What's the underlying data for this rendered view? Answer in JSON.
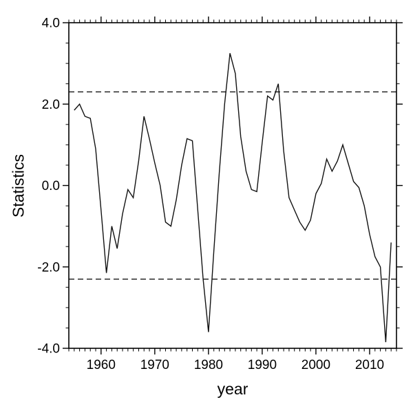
{
  "chart_data": {
    "type": "line",
    "title": "",
    "xlabel": "year",
    "ylabel": "Statistics",
    "xlim": [
      1954,
      2015
    ],
    "ylim": [
      -4.0,
      4.0
    ],
    "grid": false,
    "legend": "none",
    "x_major_ticks": [
      1960,
      1970,
      1980,
      1990,
      2000,
      2010
    ],
    "x_minor_step": 1,
    "y_major_ticks": [
      -4.0,
      -2.0,
      0.0,
      2.0,
      4.0
    ],
    "y_tick_labels": [
      "-4.0",
      "-2.0",
      "0.0",
      "2.0",
      "4.0"
    ],
    "y_minor_step": 0.5,
    "reference_lines": [
      2.3,
      -2.3
    ],
    "line_color": "#111111",
    "frame_color": "#000000",
    "series": [
      {
        "name": "statistics",
        "x": [
          1955,
          1956,
          1957,
          1958,
          1959,
          1960,
          1961,
          1962,
          1963,
          1964,
          1965,
          1966,
          1967,
          1968,
          1969,
          1970,
          1971,
          1972,
          1973,
          1974,
          1975,
          1976,
          1977,
          1978,
          1979,
          1980,
          1981,
          1982,
          1983,
          1984,
          1985,
          1986,
          1987,
          1988,
          1989,
          1990,
          1991,
          1992,
          1993,
          1994,
          1995,
          1996,
          1997,
          1998,
          1999,
          2000,
          2001,
          2002,
          2003,
          2004,
          2005,
          2006,
          2007,
          2008,
          2009,
          2010,
          2011,
          2012,
          2013,
          2014
        ],
        "y": [
          1.85,
          2.0,
          1.7,
          1.65,
          0.9,
          -0.6,
          -2.15,
          -1.0,
          -1.55,
          -0.7,
          -0.1,
          -0.3,
          0.6,
          1.7,
          1.15,
          0.55,
          0.0,
          -0.9,
          -1.0,
          -0.35,
          0.5,
          1.15,
          1.1,
          -0.6,
          -2.3,
          -3.6,
          -1.6,
          0.3,
          2.0,
          3.25,
          2.75,
          1.2,
          0.35,
          -0.1,
          -0.15,
          1.05,
          2.2,
          2.1,
          2.5,
          0.85,
          -0.3,
          -0.6,
          -0.9,
          -1.1,
          -0.85,
          -0.2,
          0.05,
          0.65,
          0.35,
          0.6,
          1.0,
          0.55,
          0.1,
          -0.05,
          -0.5,
          -1.2,
          -1.75,
          -2.0,
          -3.85,
          -1.4
        ]
      }
    ]
  }
}
